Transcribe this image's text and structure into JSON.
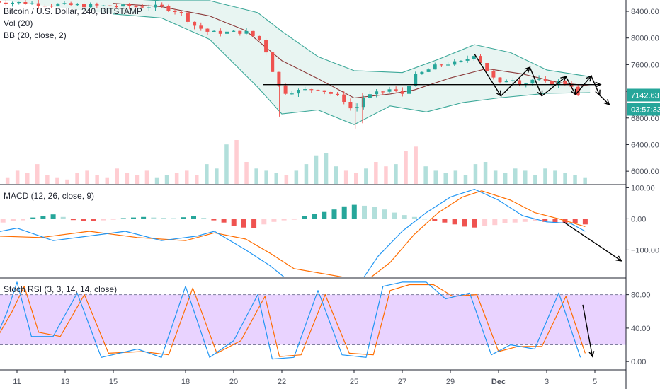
{
  "chart_data": [
    {
      "type": "candlestick",
      "panel": "price",
      "title": "Bitcoin / U.S. Dollar, 240, BITSTAMP",
      "indicators": [
        "Vol (20)",
        "BB (20, close, 2)"
      ],
      "y_ticks": [
        "8400.00",
        "8000.00",
        "7600.00",
        "7200.00",
        "6800.00",
        "6400.00",
        "6000.00"
      ],
      "y_tick_values": [
        8400,
        8000,
        7600,
        7200,
        6800,
        6400,
        6000
      ],
      "ylim": [
        5800,
        8570
      ],
      "last_price_label": "7142.63",
      "last_price": 7142.63,
      "countdown_label": "03:57:33",
      "key_points": [
        {
          "day": 10.0,
          "price": 8550
        },
        {
          "day": 12.5,
          "price": 8500
        },
        {
          "day": 14.5,
          "price": 8480
        },
        {
          "day": 17.0,
          "price": 8470
        },
        {
          "day": 17.8,
          "price": 8380
        },
        {
          "day": 18.3,
          "price": 8200
        },
        {
          "day": 19.0,
          "price": 8080
        },
        {
          "day": 20.5,
          "price": 8090
        },
        {
          "day": 21.2,
          "price": 7950
        },
        {
          "day": 21.6,
          "price": 7520
        },
        {
          "day": 22.0,
          "price": 7180
        },
        {
          "day": 23.5,
          "price": 7240
        },
        {
          "day": 24.5,
          "price": 7100
        },
        {
          "day": 25.0,
          "price": 6880
        },
        {
          "day": 25.3,
          "price": 7100
        },
        {
          "day": 26.5,
          "price": 7230
        },
        {
          "day": 27.0,
          "price": 7160
        },
        {
          "day": 27.5,
          "price": 7420
        },
        {
          "day": 28.5,
          "price": 7600
        },
        {
          "day": 29.5,
          "price": 7640
        },
        {
          "day": 30.0,
          "price": 7760
        },
        {
          "day": 30.5,
          "price": 7520
        },
        {
          "day": 31.0,
          "price": 7300
        },
        {
          "day": 31.5,
          "price": 7410
        },
        {
          "day": 32.0,
          "price": 7300
        },
        {
          "day": 32.5,
          "price": 7390
        },
        {
          "day": 33.0,
          "price": 7320
        },
        {
          "day": 33.5,
          "price": 7340
        },
        {
          "day": 34.0,
          "price": 7300
        },
        {
          "day": 34.4,
          "price": 7142.63
        }
      ],
      "bb_upper_points": [
        {
          "day": 10,
          "price": 8580
        },
        {
          "day": 14,
          "price": 8620
        },
        {
          "day": 17,
          "price": 8560
        },
        {
          "day": 19,
          "price": 8560
        },
        {
          "day": 21,
          "price": 8380
        },
        {
          "day": 22,
          "price": 8100
        },
        {
          "day": 23.5,
          "price": 7720
        },
        {
          "day": 25,
          "price": 7510
        },
        {
          "day": 27,
          "price": 7480
        },
        {
          "day": 28.5,
          "price": 7680
        },
        {
          "day": 30,
          "price": 7900
        },
        {
          "day": 31.5,
          "price": 7780
        },
        {
          "day": 33,
          "price": 7520
        },
        {
          "day": 34.8,
          "price": 7420
        }
      ],
      "bb_lower_points": [
        {
          "day": 15,
          "price": 8360
        },
        {
          "day": 17,
          "price": 8300
        },
        {
          "day": 19,
          "price": 7980
        },
        {
          "day": 21,
          "price": 7260
        },
        {
          "day": 22,
          "price": 6860
        },
        {
          "day": 23.5,
          "price": 6920
        },
        {
          "day": 25,
          "price": 6700
        },
        {
          "day": 26.5,
          "price": 6980
        },
        {
          "day": 28,
          "price": 6890
        },
        {
          "day": 29.5,
          "price": 7030
        },
        {
          "day": 31,
          "price": 7100
        },
        {
          "day": 33,
          "price": 7170
        },
        {
          "day": 34.8,
          "price": 7180
        }
      ],
      "bb_basis_points": [
        {
          "day": 15,
          "price": 8520
        },
        {
          "day": 17,
          "price": 8470
        },
        {
          "day": 19,
          "price": 8330
        },
        {
          "day": 20.5,
          "price": 8110
        },
        {
          "day": 22,
          "price": 7660
        },
        {
          "day": 23.5,
          "price": 7390
        },
        {
          "day": 25,
          "price": 7100
        },
        {
          "day": 26.5,
          "price": 7160
        },
        {
          "day": 27.5,
          "price": 7220
        },
        {
          "day": 29,
          "price": 7400
        },
        {
          "day": 30.5,
          "price": 7540
        },
        {
          "day": 32,
          "price": 7460
        },
        {
          "day": 33.5,
          "price": 7330
        },
        {
          "day": 34.8,
          "price": 7280
        }
      ],
      "volume_relative": [
        0.2,
        0.15,
        0.3,
        0.25,
        0.45,
        0.2,
        0.15,
        0.1,
        0.25,
        0.3,
        0.2,
        0.15,
        0.35,
        0.25,
        0.2,
        0.3,
        0.15,
        0.2,
        0.25,
        0.3,
        0.2,
        0.45,
        0.35,
        0.9,
        1.0,
        0.5,
        0.35,
        0.3,
        0.25,
        0.2,
        0.3,
        0.45,
        0.65,
        0.7,
        0.4,
        0.3,
        0.25,
        0.35,
        0.5,
        0.4,
        0.45,
        0.75,
        0.85,
        0.4,
        0.3,
        0.25,
        0.3,
        0.2,
        0.45,
        0.5,
        0.3,
        0.25,
        0.35,
        0.3,
        0.2,
        0.35,
        0.3,
        0.25,
        0.2,
        0.15
      ]
    },
    {
      "type": "line+histogram",
      "panel": "macd",
      "title": "MACD (12, 26, close, 9)",
      "y_ticks": [
        "100.00",
        "0.00",
        "−100.00"
      ],
      "y_tick_values": [
        100,
        0,
        -100
      ],
      "ylim": [
        -190,
        110
      ],
      "macd_points": [
        {
          "day": 10,
          "value": -45
        },
        {
          "day": 11,
          "value": -30
        },
        {
          "day": 12.5,
          "value": -70
        },
        {
          "day": 14,
          "value": -55
        },
        {
          "day": 15.5,
          "value": -40
        },
        {
          "day": 17,
          "value": -70
        },
        {
          "day": 18.5,
          "value": -55
        },
        {
          "day": 19.2,
          "value": -40
        },
        {
          "day": 20.5,
          "value": -100
        },
        {
          "day": 21.5,
          "value": -150
        },
        {
          "day": 22.3,
          "value": -200
        },
        {
          "day": 25.3,
          "value": -200
        },
        {
          "day": 26,
          "value": -120
        },
        {
          "day": 27,
          "value": -40
        },
        {
          "day": 28,
          "value": 20
        },
        {
          "day": 29,
          "value": 70
        },
        {
          "day": 30,
          "value": 95
        },
        {
          "day": 31,
          "value": 60
        },
        {
          "day": 32,
          "value": 10
        },
        {
          "day": 33,
          "value": -10
        },
        {
          "day": 34,
          "value": -15
        },
        {
          "day": 34.6,
          "value": -40
        }
      ],
      "signal_points": [
        {
          "day": 10,
          "value": -55
        },
        {
          "day": 12,
          "value": -60
        },
        {
          "day": 14,
          "value": -40
        },
        {
          "day": 16,
          "value": -60
        },
        {
          "day": 18,
          "value": -70
        },
        {
          "day": 19.2,
          "value": -45
        },
        {
          "day": 20.5,
          "value": -65
        },
        {
          "day": 21.5,
          "value": -110
        },
        {
          "day": 22.5,
          "value": -160
        },
        {
          "day": 25.5,
          "value": -200
        },
        {
          "day": 26.5,
          "value": -140
        },
        {
          "day": 27.5,
          "value": -50
        },
        {
          "day": 28.5,
          "value": 20
        },
        {
          "day": 29.5,
          "value": 70
        },
        {
          "day": 30.3,
          "value": 90
        },
        {
          "day": 31.5,
          "value": 60
        },
        {
          "day": 32.5,
          "value": 20
        },
        {
          "day": 33.5,
          "value": 0
        },
        {
          "day": 34.6,
          "value": -25
        }
      ],
      "histogram": [
        -15,
        -12,
        -8,
        -5,
        4,
        10,
        14,
        6,
        -4,
        -6,
        -8,
        -5,
        -3,
        2,
        4,
        6,
        4,
        3,
        2,
        5,
        8,
        3,
        -5,
        -12,
        -22,
        -28,
        -30,
        -18,
        -10,
        -5,
        -3,
        10,
        15,
        22,
        30,
        40,
        45,
        42,
        38,
        30,
        20,
        12,
        6,
        0,
        -8,
        -12,
        -18,
        -25,
        -28,
        -24,
        -20,
        -15,
        -12,
        -10,
        -8,
        -10,
        -12,
        -14,
        -15,
        -18
      ]
    },
    {
      "type": "line",
      "panel": "stoch_rsi",
      "title": "Stoch RSI (3, 3, 14, 14, close)",
      "y_ticks": [
        "80.00",
        "40.00",
        "0.00"
      ],
      "y_tick_values": [
        80,
        40,
        0
      ],
      "ylim": [
        -10,
        100
      ],
      "band": [
        20,
        80
      ],
      "k_points": [
        {
          "day": 10,
          "value": 20
        },
        {
          "day": 10.6,
          "value": 60
        },
        {
          "day": 11,
          "value": 95
        },
        {
          "day": 11.6,
          "value": 30
        },
        {
          "day": 12.5,
          "value": 30
        },
        {
          "day": 13.5,
          "value": 82
        },
        {
          "day": 14.5,
          "value": 5
        },
        {
          "day": 16,
          "value": 15
        },
        {
          "day": 17,
          "value": 5
        },
        {
          "day": 18,
          "value": 90
        },
        {
          "day": 19,
          "value": 5
        },
        {
          "day": 20,
          "value": 25
        },
        {
          "day": 21,
          "value": 80
        },
        {
          "day": 21.6,
          "value": 3
        },
        {
          "day": 22.5,
          "value": 5
        },
        {
          "day": 23.5,
          "value": 85
        },
        {
          "day": 24.5,
          "value": 8
        },
        {
          "day": 25.5,
          "value": 5
        },
        {
          "day": 26.2,
          "value": 90
        },
        {
          "day": 27,
          "value": 95
        },
        {
          "day": 28,
          "value": 95
        },
        {
          "day": 28.8,
          "value": 75
        },
        {
          "day": 29.8,
          "value": 82
        },
        {
          "day": 30.7,
          "value": 8
        },
        {
          "day": 31.5,
          "value": 20
        },
        {
          "day": 32.5,
          "value": 15
        },
        {
          "day": 33.5,
          "value": 82
        },
        {
          "day": 34.4,
          "value": 5
        }
      ],
      "d_points": [
        {
          "day": 10,
          "value": 20
        },
        {
          "day": 10.8,
          "value": 60
        },
        {
          "day": 11.3,
          "value": 90
        },
        {
          "day": 11.9,
          "value": 35
        },
        {
          "day": 12.8,
          "value": 30
        },
        {
          "day": 13.8,
          "value": 80
        },
        {
          "day": 14.8,
          "value": 10
        },
        {
          "day": 16.2,
          "value": 12
        },
        {
          "day": 17.3,
          "value": 8
        },
        {
          "day": 18.3,
          "value": 88
        },
        {
          "day": 19.3,
          "value": 10
        },
        {
          "day": 20.3,
          "value": 25
        },
        {
          "day": 21.3,
          "value": 78
        },
        {
          "day": 21.9,
          "value": 6
        },
        {
          "day": 22.8,
          "value": 8
        },
        {
          "day": 23.8,
          "value": 80
        },
        {
          "day": 24.8,
          "value": 10
        },
        {
          "day": 25.8,
          "value": 8
        },
        {
          "day": 26.5,
          "value": 85
        },
        {
          "day": 27.3,
          "value": 92
        },
        {
          "day": 28.3,
          "value": 92
        },
        {
          "day": 29.1,
          "value": 78
        },
        {
          "day": 30.1,
          "value": 80
        },
        {
          "day": 31,
          "value": 12
        },
        {
          "day": 31.8,
          "value": 18
        },
        {
          "day": 32.8,
          "value": 18
        },
        {
          "day": 33.8,
          "value": 78
        },
        {
          "day": 34.6,
          "value": 10
        }
      ]
    }
  ],
  "x_axis": {
    "tick_labels": [
      "11",
      "13",
      "15",
      "18",
      "20",
      "22",
      "25",
      "27",
      "29",
      "Dec",
      "3",
      "5"
    ],
    "tick_days": [
      11,
      13,
      15,
      18,
      20,
      22,
      25,
      27,
      29,
      31,
      33,
      35
    ]
  },
  "colors": {
    "up": "#26a69a",
    "down": "#ef5350",
    "up_light": "#b2dfdb",
    "down_light": "#ffcdd2",
    "bb_band": "#3ca899",
    "bb_fill": "#e8f5f2",
    "bb_basis": "#8b3a3a",
    "macd_line": "#2196f3",
    "signal_line": "#ff6d00",
    "stoch_band_fill": "#e1c4ff",
    "last_price_tag": "#26a69a",
    "annotation": "#000000"
  }
}
